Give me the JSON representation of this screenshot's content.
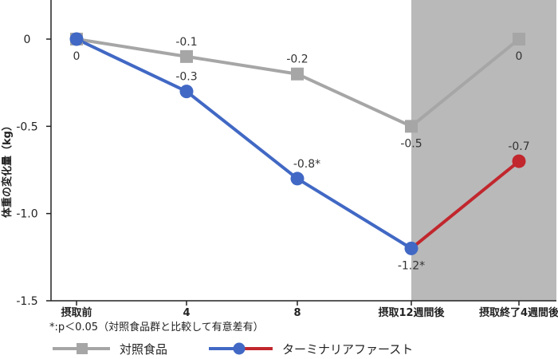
{
  "chart_data": {
    "type": "line",
    "ylabel": "体重の変化量（kg）",
    "categories": [
      "摂取前",
      "4",
      "8",
      "摂取12週間後",
      "摂取終了4週間後"
    ],
    "ylim": [
      -1.5,
      0.1
    ],
    "yticks": [
      0,
      -0.5,
      -1.0,
      -1.5
    ],
    "ytick_labels": [
      "0",
      "-0.5",
      "-1.0",
      "-1.5"
    ],
    "shaded_region": {
      "from_category": "摂取12週間後",
      "to_category": "end",
      "color": "#b9b9b9"
    },
    "series": [
      {
        "name": "対照食品",
        "color": "#a6a6a6",
        "marker": "square",
        "values": [
          0,
          -0.1,
          -0.2,
          -0.5,
          0
        ],
        "labels": [
          "0",
          "-0.1",
          "-0.2",
          "-0.5",
          "0"
        ]
      },
      {
        "name": "ターミナリアファースト",
        "color": "#4168c4",
        "post_color": "#c1272d",
        "marker": "circle",
        "values": [
          0,
          -0.3,
          -0.8,
          -1.2,
          -0.7
        ],
        "labels": [
          "",
          "-0.3",
          "-0.8*",
          "-1.2*",
          "-0.7"
        ]
      }
    ],
    "footnote": "*:p＜0.05（対照食品群と比較して有意差有）",
    "legend_placement": "bottom-left"
  }
}
